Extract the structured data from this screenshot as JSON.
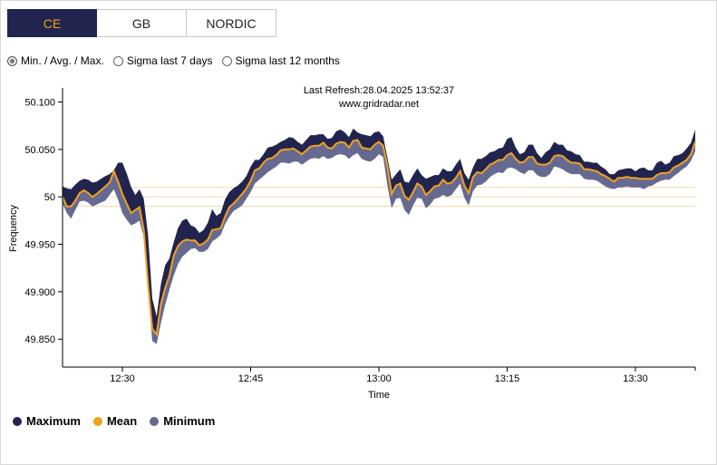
{
  "tabs": [
    {
      "label": "CE",
      "active": true
    },
    {
      "label": "GB",
      "active": false
    },
    {
      "label": "NORDIC",
      "active": false
    }
  ],
  "radios": [
    {
      "label": "Min. / Avg. / Max.",
      "checked": true
    },
    {
      "label": "Sigma last 7 days",
      "checked": false
    },
    {
      "label": "Sigma last 12 months",
      "checked": false
    }
  ],
  "header": {
    "refresh": "Last Refresh:28.04.2025 13:52:37",
    "site": "www.gridradar.net"
  },
  "colors": {
    "accent": "#f0a020",
    "max": "#21244e",
    "mean": "#f0a020",
    "min": "#666a90",
    "ref_line": "#f3d9a4"
  },
  "chart_data": {
    "type": "area",
    "xlabel": "Time",
    "ylabel": "Frequency",
    "xlim": [
      743,
      817
    ],
    "ylim": [
      49.8206,
      50.1148
    ],
    "yticks": [
      {
        "v": 50.1,
        "label": "50.100"
      },
      {
        "v": 50.05,
        "label": "50.050"
      },
      {
        "v": 50.0,
        "label": "50"
      },
      {
        "v": 49.95,
        "label": "49.950"
      },
      {
        "v": 49.9,
        "label": "49.900"
      },
      {
        "v": 49.85,
        "label": "49.850"
      }
    ],
    "xticks": [
      {
        "v": 750,
        "label": "12:30"
      },
      {
        "v": 765,
        "label": "12:45"
      },
      {
        "v": 780,
        "label": "13:00"
      },
      {
        "v": 795,
        "label": "13:15"
      },
      {
        "v": 810,
        "label": "13:30"
      }
    ],
    "reference_lines": [
      50.01,
      50.0,
      49.99
    ],
    "x": [
      743.0,
      743.5,
      744.0,
      744.5,
      745.0,
      745.5,
      746.0,
      746.5,
      747.0,
      747.5,
      748.0,
      748.5,
      749.0,
      749.5,
      750.0,
      750.5,
      751.0,
      751.5,
      752.0,
      752.5,
      753.0,
      753.5,
      754.0,
      754.5,
      755.0,
      755.5,
      756.0,
      756.5,
      757.0,
      757.5,
      758.0,
      758.5,
      759.0,
      759.5,
      760.0,
      760.5,
      761.0,
      761.5,
      762.0,
      762.5,
      763.0,
      763.5,
      764.0,
      764.5,
      765.0,
      765.5,
      766.0,
      766.5,
      767.0,
      767.5,
      768.0,
      768.5,
      769.0,
      769.5,
      770.0,
      770.5,
      771.0,
      771.5,
      772.0,
      772.5,
      773.0,
      773.5,
      774.0,
      774.5,
      775.0,
      775.5,
      776.0,
      776.5,
      777.0,
      777.5,
      778.0,
      778.5,
      779.0,
      779.5,
      780.0,
      780.5,
      781.0,
      781.5,
      782.0,
      782.5,
      783.0,
      783.5,
      784.0,
      784.5,
      785.0,
      785.5,
      786.0,
      786.5,
      787.0,
      787.5,
      788.0,
      788.5,
      789.0,
      789.5,
      790.0,
      790.5,
      791.0,
      791.5,
      792.0,
      792.5,
      793.0,
      793.5,
      794.0,
      794.5,
      795.0,
      795.5,
      796.0,
      796.5,
      797.0,
      797.5,
      798.0,
      798.5,
      799.0,
      799.5,
      800.0,
      800.5,
      801.0,
      801.5,
      802.0,
      802.5,
      803.0,
      803.5,
      804.0,
      804.5,
      805.0,
      805.5,
      806.0,
      806.5,
      807.0,
      807.5,
      808.0,
      808.5,
      809.0,
      809.5,
      810.0,
      810.5,
      811.0,
      811.5,
      812.0,
      812.5,
      813.0,
      813.5,
      814.0,
      814.5,
      815.0,
      815.5,
      816.0,
      816.5,
      817.0
    ],
    "series": [
      {
        "name": "Maximum",
        "values": [
          50.011,
          50.009,
          50.008,
          50.013,
          50.017,
          50.019,
          50.018,
          50.015,
          50.016,
          50.019,
          50.022,
          50.024,
          50.028,
          50.036,
          50.036,
          50.025,
          50.011,
          50.002,
          50.008,
          49.998,
          49.96,
          49.893,
          49.874,
          49.908,
          49.928,
          49.935,
          49.952,
          49.967,
          49.975,
          49.977,
          49.97,
          49.968,
          49.962,
          49.965,
          49.973,
          49.987,
          49.98,
          49.983,
          49.997,
          50.005,
          50.009,
          50.012,
          50.016,
          50.022,
          50.032,
          50.039,
          50.039,
          50.045,
          50.052,
          50.053,
          50.055,
          50.058,
          50.06,
          50.063,
          50.062,
          50.058,
          50.055,
          50.06,
          50.065,
          50.065,
          50.066,
          50.066,
          50.061,
          50.062,
          50.069,
          50.071,
          50.068,
          50.063,
          50.072,
          50.068,
          50.066,
          50.065,
          50.064,
          50.068,
          50.069,
          50.064,
          50.041,
          50.018,
          50.024,
          50.029,
          50.016,
          50.015,
          50.023,
          50.03,
          50.023,
          50.019,
          50.021,
          50.023,
          50.023,
          50.03,
          50.027,
          50.027,
          50.034,
          50.04,
          50.025,
          50.018,
          50.031,
          50.04,
          50.04,
          50.043,
          50.047,
          50.048,
          50.051,
          50.052,
          50.061,
          50.063,
          50.052,
          50.045,
          50.047,
          50.055,
          50.055,
          50.046,
          50.041,
          50.047,
          50.05,
          50.058,
          50.055,
          50.055,
          50.049,
          50.048,
          50.045,
          50.044,
          50.037,
          50.037,
          50.036,
          50.036,
          50.032,
          50.029,
          50.024,
          50.024,
          50.028,
          50.029,
          50.03,
          50.03,
          50.027,
          50.03,
          50.031,
          50.028,
          50.028,
          50.036,
          50.038,
          50.034,
          50.036,
          50.043,
          50.044,
          50.046,
          50.051,
          50.057,
          50.071
        ]
      },
      {
        "name": "Mean",
        "values": [
          50.0,
          49.99,
          49.99,
          49.996,
          50.004,
          50.007,
          50.004,
          50.0,
          50.003,
          50.007,
          50.011,
          50.015,
          50.027,
          50.016,
          50.003,
          49.993,
          49.983,
          49.986,
          49.989,
          49.965,
          49.908,
          49.861,
          49.855,
          49.887,
          49.904,
          49.917,
          49.938,
          49.948,
          49.953,
          49.955,
          49.954,
          49.954,
          49.949,
          49.951,
          49.955,
          49.965,
          49.966,
          49.967,
          49.979,
          49.989,
          49.993,
          49.998,
          50.003,
          50.009,
          50.017,
          50.028,
          50.03,
          50.036,
          50.04,
          50.041,
          50.044,
          50.049,
          50.05,
          50.05,
          50.051,
          50.048,
          50.045,
          50.049,
          50.053,
          50.054,
          50.054,
          50.057,
          50.052,
          50.051,
          50.056,
          50.058,
          50.057,
          50.052,
          50.059,
          50.06,
          50.052,
          50.051,
          50.05,
          50.055,
          50.058,
          50.054,
          50.032,
          50.003,
          50.012,
          50.014,
          50.001,
          49.997,
          50.005,
          50.014,
          50.011,
          50.002,
          50.006,
          50.011,
          50.012,
          50.018,
          50.014,
          50.015,
          50.02,
          50.027,
          50.012,
          50.004,
          50.021,
          50.026,
          50.025,
          50.029,
          50.034,
          50.036,
          50.039,
          50.039,
          50.044,
          50.046,
          50.04,
          50.036,
          50.037,
          50.042,
          50.042,
          50.035,
          50.034,
          50.034,
          50.036,
          50.043,
          50.044,
          50.043,
          50.039,
          50.036,
          50.036,
          50.035,
          50.029,
          50.029,
          50.028,
          50.027,
          50.024,
          50.022,
          50.019,
          50.016,
          50.02,
          50.02,
          50.021,
          50.02,
          50.02,
          50.019,
          50.019,
          50.019,
          50.019,
          50.023,
          50.025,
          50.025,
          50.026,
          50.031,
          50.033,
          50.036,
          50.039,
          50.045,
          50.058
        ]
      },
      {
        "name": "Minimum",
        "values": [
          49.993,
          49.983,
          49.977,
          49.986,
          49.995,
          49.996,
          49.994,
          49.99,
          49.992,
          49.994,
          49.996,
          50.002,
          50.008,
          49.997,
          49.983,
          49.976,
          49.97,
          49.972,
          49.975,
          49.958,
          49.901,
          49.848,
          49.845,
          49.867,
          49.886,
          49.902,
          49.917,
          49.929,
          49.937,
          49.941,
          49.945,
          49.946,
          49.942,
          49.942,
          49.945,
          49.953,
          49.956,
          49.96,
          49.971,
          49.979,
          49.985,
          49.988,
          49.991,
          49.998,
          50.005,
          50.014,
          50.018,
          50.022,
          50.026,
          50.029,
          50.032,
          50.036,
          50.036,
          50.035,
          50.037,
          50.037,
          50.034,
          50.037,
          50.04,
          50.041,
          50.04,
          50.043,
          50.04,
          50.041,
          50.044,
          50.045,
          50.044,
          50.04,
          50.044,
          50.046,
          50.04,
          50.038,
          50.037,
          50.04,
          50.045,
          50.042,
          50.012,
          49.988,
          49.998,
          49.999,
          49.986,
          49.981,
          49.991,
          49.999,
          49.998,
          49.988,
          49.992,
          49.998,
          49.999,
          50.002,
          50.0,
          50.002,
          50.008,
          50.014,
          49.999,
          49.991,
          50.006,
          50.012,
          50.013,
          50.016,
          50.021,
          50.024,
          50.026,
          50.025,
          50.03,
          50.031,
          50.029,
          50.026,
          50.024,
          50.028,
          50.028,
          50.023,
          50.021,
          50.021,
          50.024,
          50.032,
          50.031,
          50.029,
          50.026,
          50.024,
          50.024,
          50.024,
          50.019,
          50.018,
          50.018,
          50.017,
          50.014,
          50.011,
          50.009,
          50.008,
          50.01,
          50.01,
          50.011,
          50.01,
          50.01,
          50.01,
          50.008,
          50.011,
          50.012,
          50.015,
          50.017,
          50.018,
          50.018,
          50.022,
          50.025,
          50.029,
          50.032,
          50.038,
          50.048
        ]
      }
    ]
  },
  "legend": [
    {
      "name": "Maximum",
      "color": "#21244e"
    },
    {
      "name": "Mean",
      "color": "#f0a020"
    },
    {
      "name": "Minimum",
      "color": "#666a90"
    }
  ]
}
